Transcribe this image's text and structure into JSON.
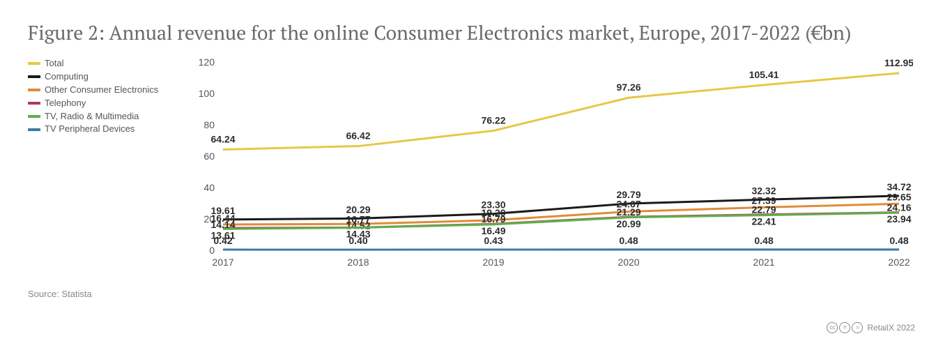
{
  "title": "Figure 2: Annual revenue for the online Consumer Electronics market, Europe, 2017-2022 (€bn)",
  "source_label": "Source: Statista",
  "attribution": "RetailX 2022",
  "chart": {
    "type": "line",
    "x_labels": [
      "2017",
      "2018",
      "2019",
      "2020",
      "2021",
      "2022"
    ],
    "y_ticks": [
      0,
      20,
      40,
      60,
      80,
      100,
      120
    ],
    "ylim": [
      0,
      120
    ],
    "axis_color": "#888888",
    "grid": false,
    "line_width": 3,
    "label_fontsize": 14,
    "data_label_fontsize": 14,
    "title_fontsize": 28,
    "background_color": "#ffffff",
    "series": [
      {
        "name": "Total",
        "color": "#e6c845",
        "values": [
          64.24,
          66.42,
          76.22,
          97.26,
          105.41,
          112.95
        ],
        "label_dy": -10
      },
      {
        "name": "Computing",
        "color": "#1a1a1a",
        "values": [
          19.61,
          20.29,
          23.3,
          29.79,
          32.32,
          34.72
        ],
        "label_dy": -8
      },
      {
        "name": "Other Consumer Electronics",
        "color": "#e08b3a",
        "values": [
          16.44,
          16.77,
          19.2,
          24.67,
          27.39,
          29.65
        ],
        "label_dy": -8
      },
      {
        "name": "Telephony",
        "color": "#b23a5a",
        "values": [
          14.14,
          14.52,
          16.79,
          21.29,
          22.79,
          24.16
        ],
        "label_dy": -8
      },
      {
        "name": "TV, Radio & Multimedia",
        "color": "#5fb04a",
        "values": [
          13.61,
          14.43,
          16.49,
          20.99,
          22.41,
          23.94
        ],
        "label_dy": 14
      },
      {
        "name": "TV Peripheral Devices",
        "color": "#3a7ca5",
        "values": [
          0.42,
          0.4,
          0.43,
          0.48,
          0.48,
          0.48
        ],
        "label_dy": -8
      }
    ]
  }
}
